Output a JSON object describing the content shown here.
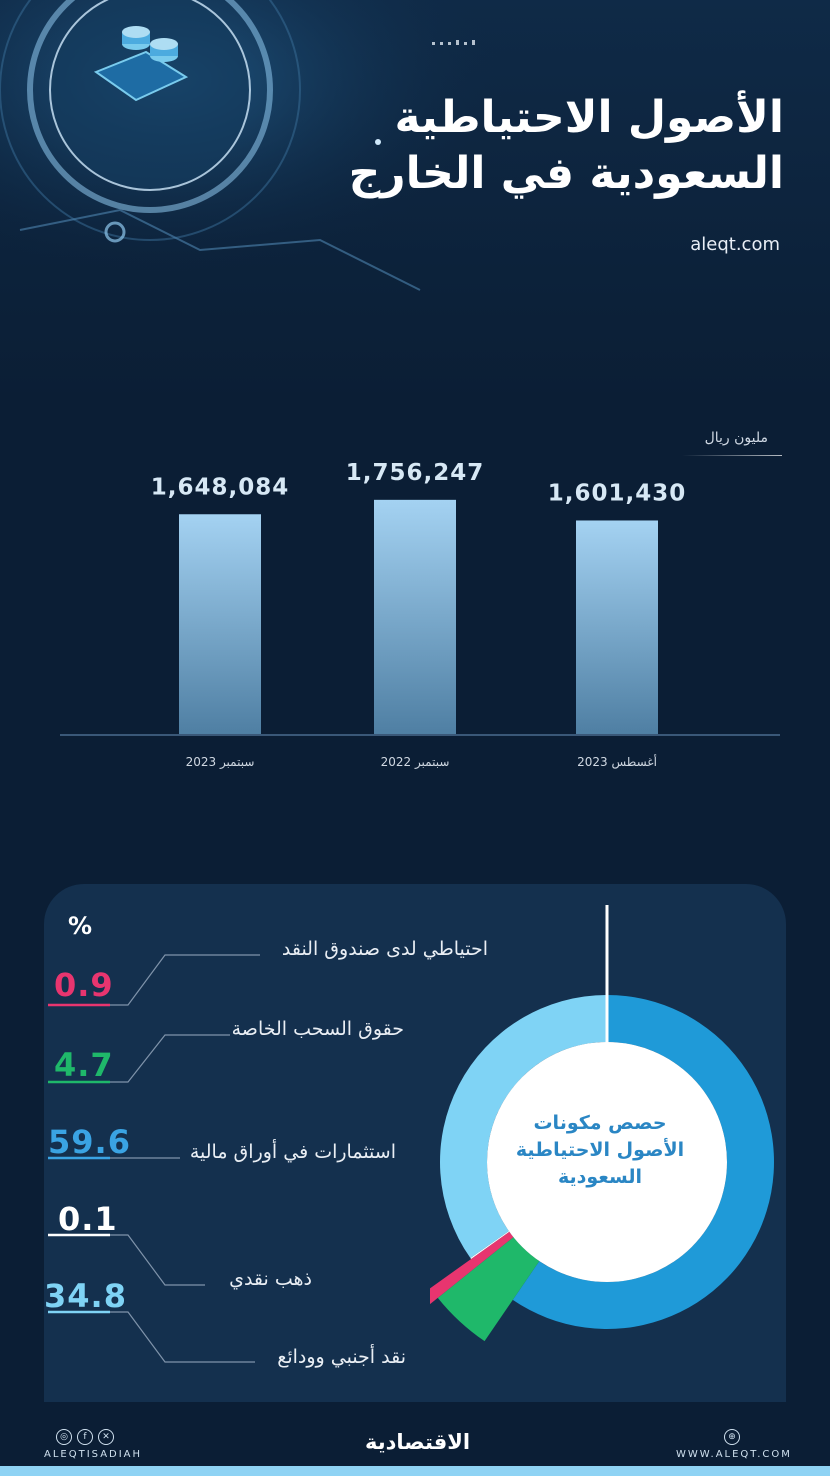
{
  "title": {
    "line1": "الأصول الاحتياطية",
    "line2": "السعودية في الخارج"
  },
  "site": "aleqt.com",
  "chart_data": [
    {
      "type": "bar",
      "unit_label": "مليون ريال",
      "categories": [
        "سبتمبر 2023",
        "سبتمبر 2022",
        "أغسطس 2023"
      ],
      "values": [
        1648084,
        1756247,
        1601430
      ],
      "value_labels": [
        "1,648,084",
        "1,756,247",
        "1,601,430"
      ],
      "ylim": [
        0,
        1800000
      ],
      "bar_color": "#7fb6de"
    },
    {
      "type": "pie",
      "center_title": [
        "حصص مكونات",
        "الأصول الاحتياطية",
        "السعودية"
      ],
      "percent_sign": "%",
      "slices": [
        {
          "label": "احتياطي لدى صندوق النقد",
          "value": 0.9,
          "value_text": "0.9",
          "color": "#e8356f"
        },
        {
          "label": "حقوق السحب الخاصة",
          "value": 4.7,
          "value_text": "4.7",
          "color": "#1fb86a"
        },
        {
          "label": "استثمارات في أوراق مالية",
          "value": 59.6,
          "value_text": "59.6",
          "color": "#1f9ad8"
        },
        {
          "label": "ذهب نقدي",
          "value": 0.1,
          "value_text": "0.1",
          "color": "#ffffff"
        },
        {
          "label": "نقد أجنبي وودائع",
          "value": 34.8,
          "value_text": "34.8",
          "color": "#7fd3f5"
        }
      ]
    }
  ],
  "footer": {
    "handle": "ALEQTISADIAH",
    "brand": "الاقتصادية",
    "web": "WWW.ALEQT.COM",
    "social_icons": [
      "instagram-icon",
      "facebook-icon",
      "x-icon"
    ]
  },
  "colors": {
    "background": "#0b1e35",
    "panel": "#14304e",
    "accent": "#2a86c4",
    "footer_bar": "#8fd3f4"
  }
}
